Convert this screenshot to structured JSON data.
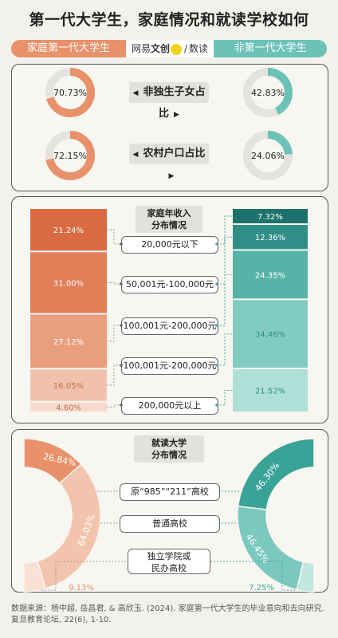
{
  "title": "第一代大学生，家庭情况和就读学校如何",
  "header": {
    "left": "家庭第一代大学生",
    "right": "非第一代大学生",
    "brand_a": "网易",
    "brand_b": "文创",
    "brand_c": "数读",
    "brand_dot": "Netease"
  },
  "colors": {
    "orange": "#e8916a",
    "teal": "#6cc2b7"
  },
  "chart_data": [
    {
      "type": "pie",
      "title": "非独生子女占比",
      "series": [
        {
          "name": "家庭第一代大学生",
          "values": [
            70.73
          ],
          "labels": [
            "70.73%"
          ]
        },
        {
          "name": "非第一代大学生",
          "values": [
            42.83
          ],
          "labels": [
            "42.83%"
          ]
        }
      ]
    },
    {
      "type": "pie",
      "title": "农村户口占比",
      "series": [
        {
          "name": "家庭第一代大学生",
          "values": [
            72.15
          ],
          "labels": [
            "72.15%"
          ]
        },
        {
          "name": "非第一代大学生",
          "values": [
            24.06
          ],
          "labels": [
            "24.06%"
          ]
        }
      ]
    },
    {
      "type": "bar",
      "title": "家庭年收入分布情况",
      "categories": [
        "20,000元以下",
        "50,001元-100,000元",
        "100,001元-200,000元",
        "100,001元-200,000元",
        "200,000元以上"
      ],
      "series": [
        {
          "name": "家庭第一代大学生",
          "values": [
            21.24,
            31.0,
            27.12,
            16.05,
            4.6
          ],
          "labels": [
            "21.24%",
            "31.00%",
            "27.12%",
            "16.05%",
            "4.60%"
          ]
        },
        {
          "name": "非第一代大学生",
          "values": [
            7.32,
            12.36,
            24.35,
            34.46,
            21.52
          ],
          "labels": [
            "7.32%",
            "12.36%",
            "24.35%",
            "34.46%",
            "21.52%"
          ]
        }
      ]
    },
    {
      "type": "pie",
      "title": "就读大学分布情况",
      "categories": [
        "原“985”“211”高校",
        "普通高校",
        "独立学院或民办高校"
      ],
      "series": [
        {
          "name": "家庭第一代大学生",
          "values": [
            26.84,
            64.03,
            9.13
          ],
          "labels": [
            "26.84%",
            "64.03%",
            "9.13%"
          ]
        },
        {
          "name": "非第一代大学生",
          "values": [
            46.3,
            46.45,
            7.25
          ],
          "labels": [
            "46.30%",
            "46.45%",
            "7.25%"
          ]
        }
      ]
    }
  ],
  "source": "数据来源：杨中超, 岳昌君, & 高欣玉. (2024). 家庭第一代大学生的毕业意向和去向研究. 复旦教育论坛, 22(6), 1-10."
}
